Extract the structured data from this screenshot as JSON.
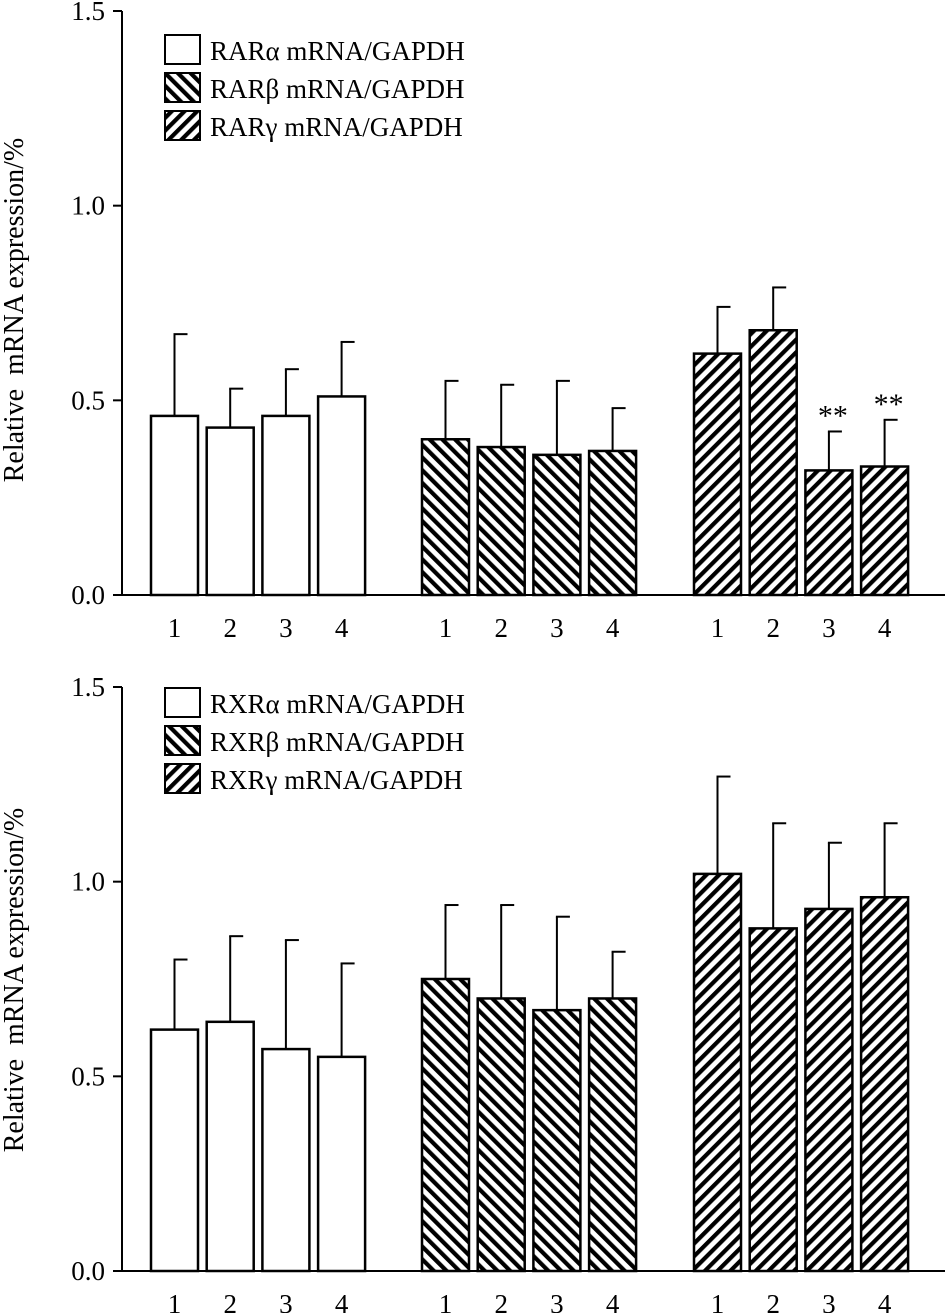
{
  "chart_data": [
    {
      "type": "bar",
      "ylabel": "Relative  mRNA expression/%",
      "ylim": [
        0,
        1.5
      ],
      "yticks": [
        "0.0",
        "0.5",
        "1.0",
        "1.5"
      ],
      "categories": [
        "1",
        "2",
        "3",
        "4"
      ],
      "legend_position": "top-left",
      "series": [
        {
          "name": "RARα mRNA/GAPDH",
          "pattern": "none",
          "values": [
            0.46,
            0.43,
            0.46,
            0.51
          ],
          "errors": [
            0.21,
            0.1,
            0.12,
            0.14
          ],
          "annotations": [
            "",
            "",
            "",
            ""
          ]
        },
        {
          "name": "RARβ mRNA/GAPDH",
          "pattern": "back",
          "values": [
            0.4,
            0.38,
            0.36,
            0.37
          ],
          "errors": [
            0.15,
            0.16,
            0.19,
            0.11
          ],
          "annotations": [
            "",
            "",
            "",
            ""
          ]
        },
        {
          "name": "RARγ mRNA/GAPDH",
          "pattern": "fwd",
          "values": [
            0.62,
            0.68,
            0.32,
            0.33
          ],
          "errors": [
            0.12,
            0.11,
            0.1,
            0.12
          ],
          "annotations": [
            "",
            "",
            "**",
            "**"
          ]
        }
      ]
    },
    {
      "type": "bar",
      "ylabel": "Relative  mRNA expression/%",
      "ylim": [
        0,
        1.5
      ],
      "yticks": [
        "0.0",
        "0.5",
        "1.0",
        "1.5"
      ],
      "categories": [
        "1",
        "2",
        "3",
        "4"
      ],
      "legend_position": "top-left",
      "series": [
        {
          "name": "RXRα mRNA/GAPDH",
          "pattern": "none",
          "values": [
            0.62,
            0.64,
            0.57,
            0.55
          ],
          "errors": [
            0.18,
            0.22,
            0.28,
            0.24
          ],
          "annotations": [
            "",
            "",
            "",
            ""
          ]
        },
        {
          "name": "RXRβ mRNA/GAPDH",
          "pattern": "back",
          "values": [
            0.75,
            0.7,
            0.67,
            0.7
          ],
          "errors": [
            0.19,
            0.24,
            0.24,
            0.12
          ],
          "annotations": [
            "",
            "",
            "",
            ""
          ]
        },
        {
          "name": "RXRγ mRNA/GAPDH",
          "pattern": "fwd",
          "values": [
            1.02,
            0.88,
            0.93,
            0.96
          ],
          "errors": [
            0.25,
            0.27,
            0.17,
            0.19
          ],
          "annotations": [
            "",
            "",
            "",
            ""
          ]
        }
      ]
    }
  ]
}
